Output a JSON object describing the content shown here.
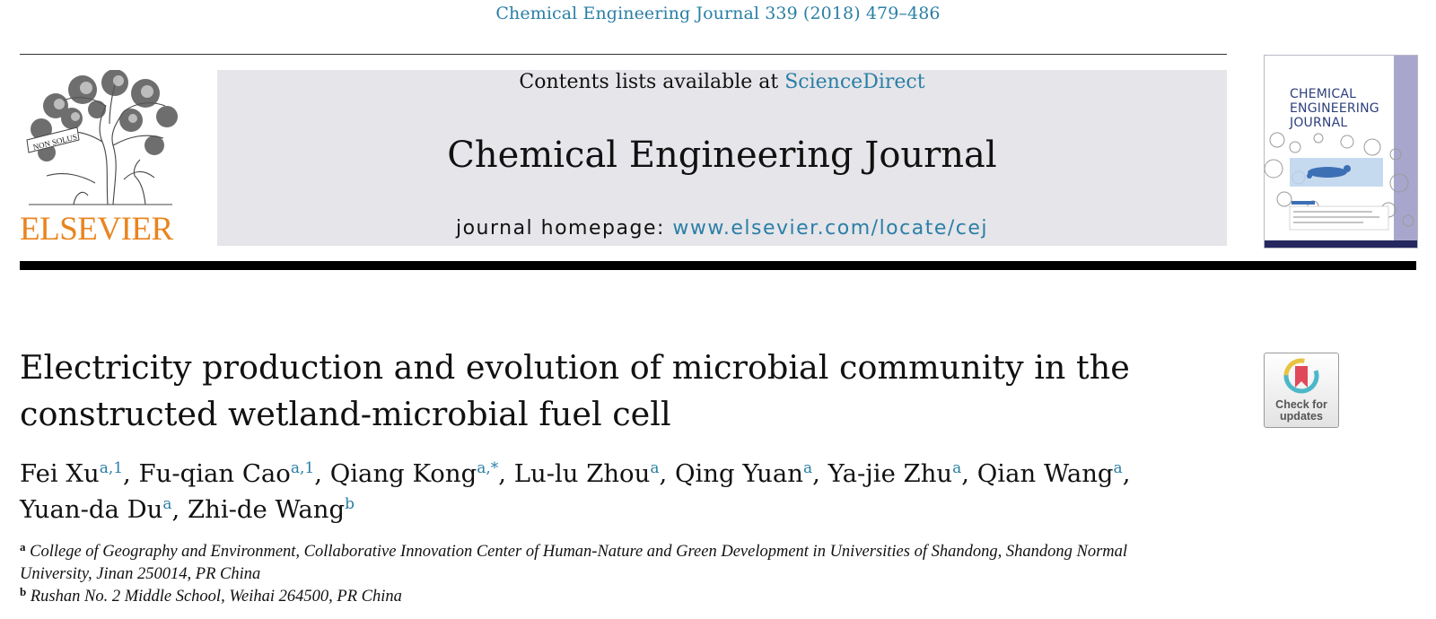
{
  "header": {
    "citation": "Chemical Engineering Journal 339 (2018) 479–486",
    "contents_prefix": "Contents lists available at ",
    "contents_link": "ScienceDirect",
    "journal_name": "Chemical Engineering Journal",
    "homepage_prefix": "journal homepage: ",
    "homepage_link": "www.elsevier.com/locate/cej"
  },
  "publisher": {
    "logo_word": "ELSEVIER",
    "logo_icon": "elsevier-tree-logo",
    "brand_color": "#e9841f",
    "tree_motto": "NON SOLUS"
  },
  "cover": {
    "title_lines": [
      "CHEMICAL",
      "ENGINEERING",
      "JOURNAL"
    ],
    "title_color": "#2d3f7c",
    "strip_color": "#a9a6cd"
  },
  "check_updates": {
    "line1": "Check for",
    "line2": "updates",
    "icon": "check-for-updates-icon"
  },
  "article": {
    "title_lines": [
      "Electricity production and evolution of microbial community in the",
      "constructed wetland-microbial fuel cell"
    ],
    "authors": [
      {
        "name": "Fei Xu",
        "sup": "a,1"
      },
      {
        "name": "Fu-qian Cao",
        "sup": "a,1"
      },
      {
        "name": "Qiang Kong",
        "sup": "a,*"
      },
      {
        "name": "Lu-lu Zhou",
        "sup": "a"
      },
      {
        "name": "Qing Yuan",
        "sup": "a"
      },
      {
        "name": "Ya-jie Zhu",
        "sup": "a"
      },
      {
        "name": "Qian Wang",
        "sup": "a"
      },
      {
        "name": "Yuan-da Du",
        "sup": "a"
      },
      {
        "name": "Zhi-de Wang",
        "sup": "b"
      }
    ],
    "affiliations": [
      {
        "mark": "a",
        "lines": [
          "College of Geography and Environment, Collaborative Innovation Center of Human-Nature and Green Development in Universities of Shandong, Shandong Normal",
          "University, Jinan 250014, PR China"
        ]
      },
      {
        "mark": "b",
        "lines": [
          "Rushan No. 2 Middle School, Weihai 264500, PR China"
        ]
      }
    ]
  },
  "colors": {
    "link": "#2a7fa6",
    "banner_bg": "#e6e5e9"
  }
}
